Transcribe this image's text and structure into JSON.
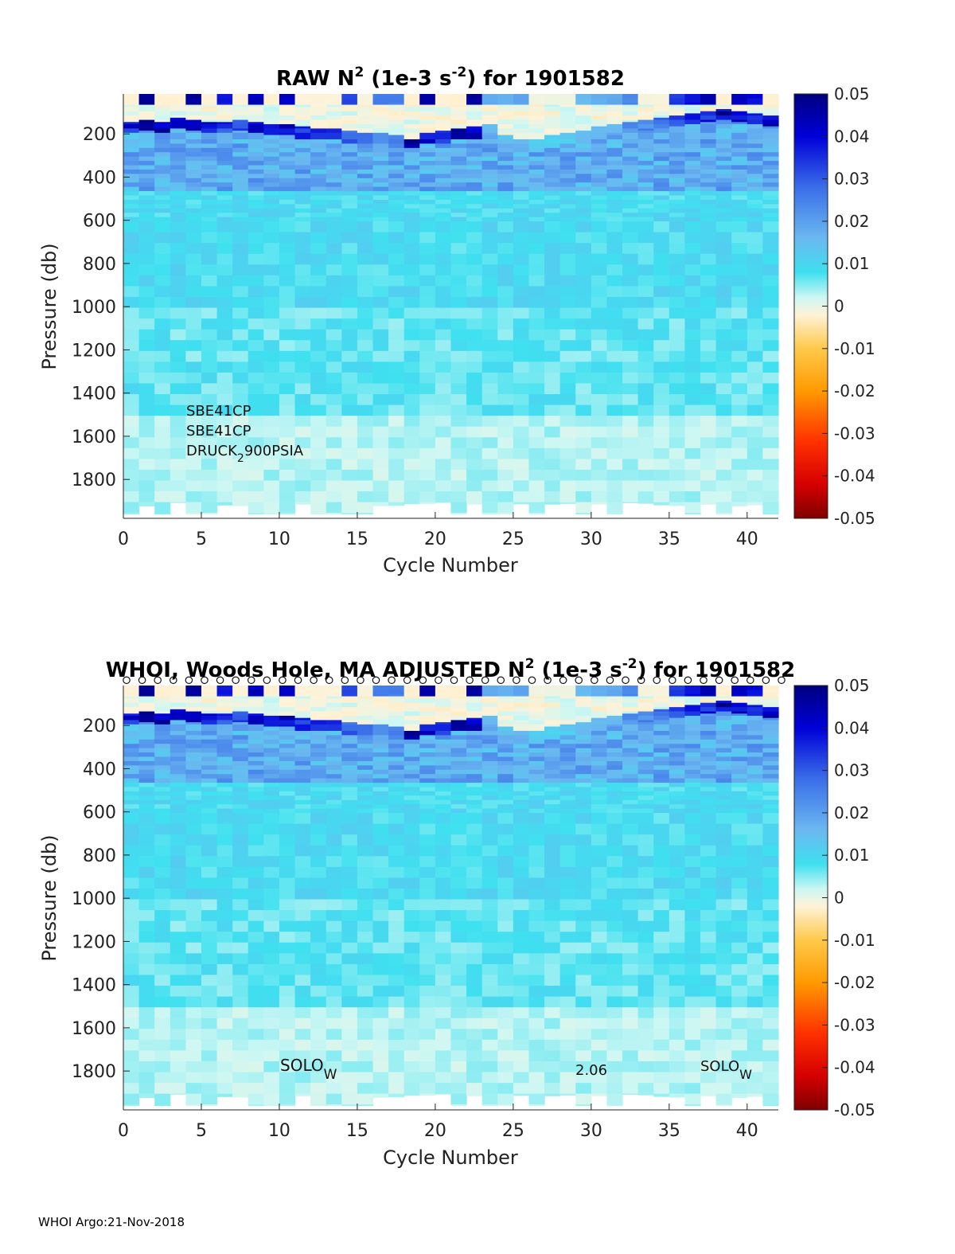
{
  "chart_data": [
    {
      "type": "heatmap",
      "title": {
        "prefix": "RAW N",
        "sup1": "2",
        "mid": " (1e-3 s",
        "sup2": "-2",
        "suffix": ") for 1901582"
      },
      "xlabel": "Cycle Number",
      "ylabel": "Pressure (db)",
      "xlim": [
        0,
        42
      ],
      "ylim": [
        1980,
        15
      ],
      "xticks": [
        "0",
        "5",
        "10",
        "15",
        "20",
        "25",
        "30",
        "35",
        "40"
      ],
      "yticks": [
        "200",
        "400",
        "600",
        "800",
        "1000",
        "1200",
        "1400",
        "1600",
        "1800"
      ],
      "colorbar": {
        "clim": [
          -0.05,
          0.05
        ],
        "ticks": [
          "0.05",
          "0.04",
          "0.03",
          "0.02",
          "0.01",
          "0",
          "-0.01",
          "-0.02",
          "-0.03",
          "-0.04",
          "-0.05"
        ]
      },
      "annotations": [
        {
          "base": "SBE41CP",
          "sub": "",
          "tail": ""
        },
        {
          "base": "SBE41CP",
          "sub": "",
          "tail": ""
        },
        {
          "base": "DRUCK",
          "sub": "2",
          "tail": "900PSIA"
        }
      ],
      "grid": false,
      "cycles": 42,
      "mixed_layer_depth_db": [
        170,
        160,
        170,
        155,
        165,
        175,
        170,
        165,
        175,
        180,
        185,
        195,
        200,
        205,
        215,
        220,
        225,
        230,
        240,
        220,
        210,
        200,
        195,
        185,
        230,
        250,
        240,
        230,
        220,
        210,
        190,
        180,
        170,
        160,
        150,
        140,
        130,
        120,
        110,
        120,
        130,
        140
      ],
      "thermocline_peak_N2": [
        0.045,
        0.05,
        0.05,
        0.048,
        0.05,
        0.045,
        0.04,
        0.042,
        0.045,
        0.05,
        0.045,
        0.04,
        0.038,
        0.04,
        0.035,
        0.03,
        0.028,
        0.026,
        0.05,
        0.05,
        0.045,
        0.05,
        0.05,
        0.02,
        0.018,
        0.02,
        0.016,
        0.014,
        0.015,
        0.016,
        0.018,
        0.02,
        0.025,
        0.028,
        0.03,
        0.035,
        0.04,
        0.045,
        0.05,
        0.045,
        0.04,
        0.05
      ]
    },
    {
      "type": "heatmap",
      "title": {
        "prefix": "WHOI, Woods Hole, MA  ADJUSTED N",
        "sup1": "2",
        "mid": " (1e-3 s",
        "sup2": "-2",
        "suffix": ") for 1901582"
      },
      "xlabel": "Cycle Number",
      "ylabel": "Pressure (db)",
      "xlim": [
        0,
        42
      ],
      "ylim": [
        1980,
        15
      ],
      "xticks": [
        "0",
        "5",
        "10",
        "15",
        "20",
        "25",
        "30",
        "35",
        "40"
      ],
      "yticks": [
        "200",
        "400",
        "600",
        "800",
        "1000",
        "1200",
        "1400",
        "1600",
        "1800"
      ],
      "colorbar": {
        "clim": [
          -0.05,
          0.05
        ],
        "ticks": [
          "0.05",
          "0.04",
          "0.03",
          "0.02",
          "0.01",
          "0",
          "-0.01",
          "-0.02",
          "-0.03",
          "-0.04",
          "-0.05"
        ]
      },
      "annotations": [
        {
          "base": "SOLO",
          "sub": "W",
          "tail": ""
        },
        {
          "base": "2.06",
          "sub": "",
          "tail": ""
        },
        {
          "base": "SOLO",
          "sub": "W",
          "tail": ""
        }
      ],
      "grid": false,
      "cycles": 42,
      "markers": {
        "symbol": "circle",
        "pressure_db": 5,
        "cycles": [
          0,
          1,
          2,
          3,
          4,
          5,
          6,
          7,
          8,
          9,
          10,
          11,
          12,
          13,
          14,
          15,
          16,
          17,
          18,
          19,
          20,
          21,
          22,
          23,
          24,
          25,
          26,
          27,
          28,
          29,
          30,
          31,
          32,
          33,
          34,
          35,
          36,
          37,
          38,
          39,
          40,
          41,
          42
        ]
      },
      "mixed_layer_depth_db": [
        170,
        160,
        170,
        155,
        165,
        175,
        170,
        165,
        175,
        180,
        185,
        195,
        200,
        205,
        215,
        220,
        225,
        230,
        240,
        220,
        210,
        200,
        195,
        185,
        230,
        250,
        240,
        230,
        220,
        210,
        190,
        180,
        170,
        160,
        150,
        140,
        130,
        120,
        110,
        120,
        130,
        140
      ],
      "thermocline_peak_N2": [
        0.045,
        0.05,
        0.05,
        0.048,
        0.05,
        0.045,
        0.04,
        0.042,
        0.045,
        0.05,
        0.045,
        0.04,
        0.038,
        0.04,
        0.035,
        0.03,
        0.028,
        0.026,
        0.05,
        0.05,
        0.045,
        0.05,
        0.05,
        0.02,
        0.018,
        0.02,
        0.016,
        0.014,
        0.015,
        0.016,
        0.018,
        0.02,
        0.025,
        0.028,
        0.03,
        0.035,
        0.04,
        0.045,
        0.05,
        0.045,
        0.04,
        0.05
      ]
    }
  ],
  "footer": "WHOI Argo:21-Nov-2018"
}
